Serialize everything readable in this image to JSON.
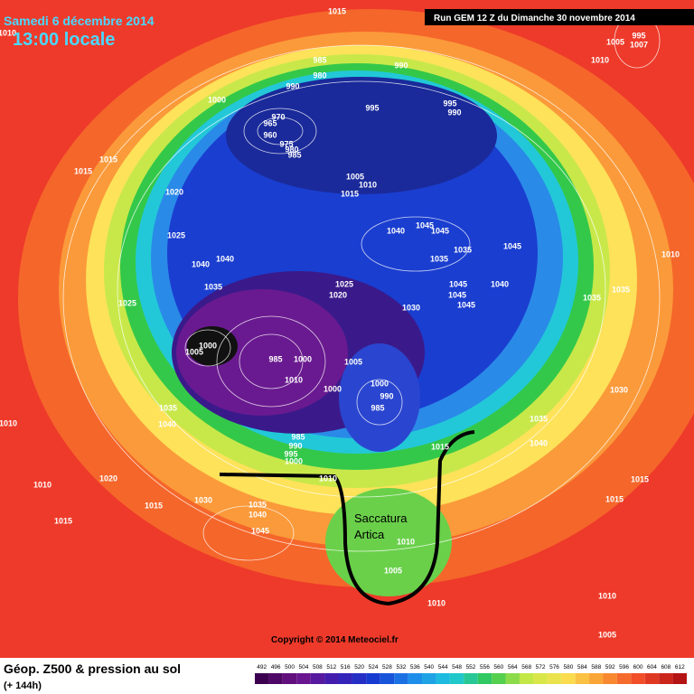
{
  "header": {
    "date": "Samedi 6 décembre 2014",
    "time": "13:00 locale",
    "run": "Run GEM 12 Z du Dimanche 30 novembre 2014"
  },
  "footer": {
    "title": "Géop. Z500 & pression au sol",
    "lead": "(+ 144h)",
    "copyright": "Copyright © 2014 Meteociel.fr",
    "scale": [
      492,
      496,
      500,
      504,
      508,
      512,
      516,
      520,
      524,
      528,
      532,
      536,
      540,
      544,
      548,
      552,
      556,
      560,
      564,
      568,
      572,
      576,
      580,
      584,
      588,
      592,
      596,
      600,
      604,
      608,
      612
    ]
  },
  "annotations": [
    "Saccatura",
    "Artica"
  ],
  "pressure_labels": [
    1015,
    1005,
    995,
    1007,
    1010,
    1010,
    985,
    990,
    980,
    990,
    1000,
    995,
    995,
    990,
    970,
    965,
    960,
    975,
    980,
    985,
    1015,
    1015,
    1005,
    1010,
    1015,
    1020,
    1040,
    1045,
    1045,
    1025,
    1035,
    1035,
    1045,
    1010,
    1040,
    1040,
    1035,
    1025,
    1020,
    1045,
    1040,
    1045,
    1045,
    1035,
    1035,
    1025,
    1030,
    1005,
    1000,
    985,
    1000,
    1005,
    1010,
    1000,
    1000,
    990,
    985,
    1030,
    1035,
    1040,
    1035,
    985,
    990,
    995,
    1000,
    1040,
    1015,
    1010,
    1010,
    1020,
    1010,
    1015,
    1015,
    1030,
    1035,
    1040,
    1015,
    1015,
    1045,
    1010,
    1005,
    1010,
    1010,
    1005
  ]
}
